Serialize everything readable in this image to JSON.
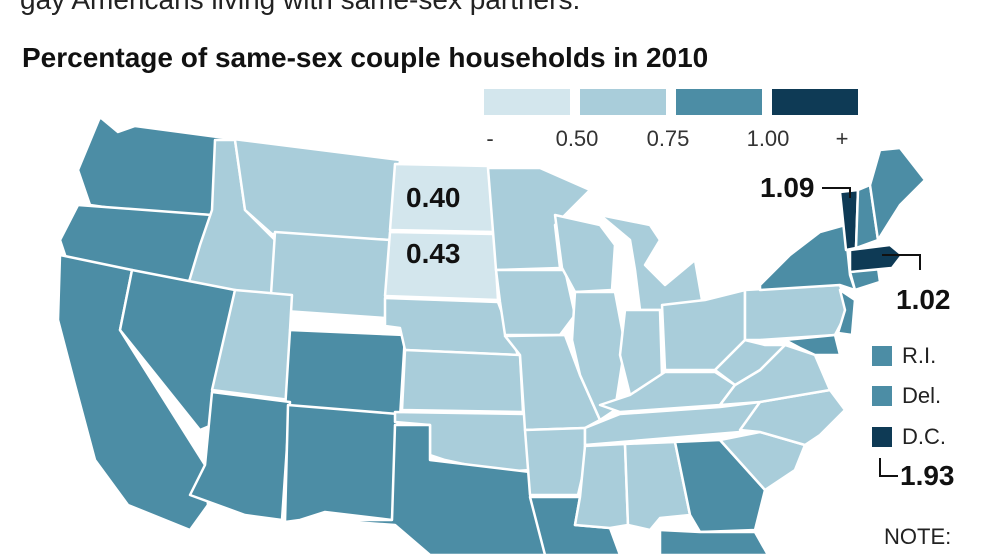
{
  "intro_text": "gay Americans living with same-sex partners.",
  "title": "Percentage of same-sex couple households in 2010",
  "legend": {
    "colors": [
      "#d3e6ed",
      "#a9cdda",
      "#4c8da5",
      "#0e3a55"
    ],
    "ticks": [
      "-",
      "0.50",
      "0.75",
      "1.00",
      "+"
    ]
  },
  "value_labels": {
    "north_dakota": "0.40",
    "south_dakota": "0.43",
    "vermont": "1.09",
    "massachusetts": "1.02",
    "dc": "1.93"
  },
  "small_states": [
    {
      "name": "R.I.",
      "color": "#4c8da5"
    },
    {
      "name": "Del.",
      "color": "#4c8da5"
    },
    {
      "name": "D.C.",
      "color": "#0e3a55"
    }
  ],
  "note": "NOTE:"
}
